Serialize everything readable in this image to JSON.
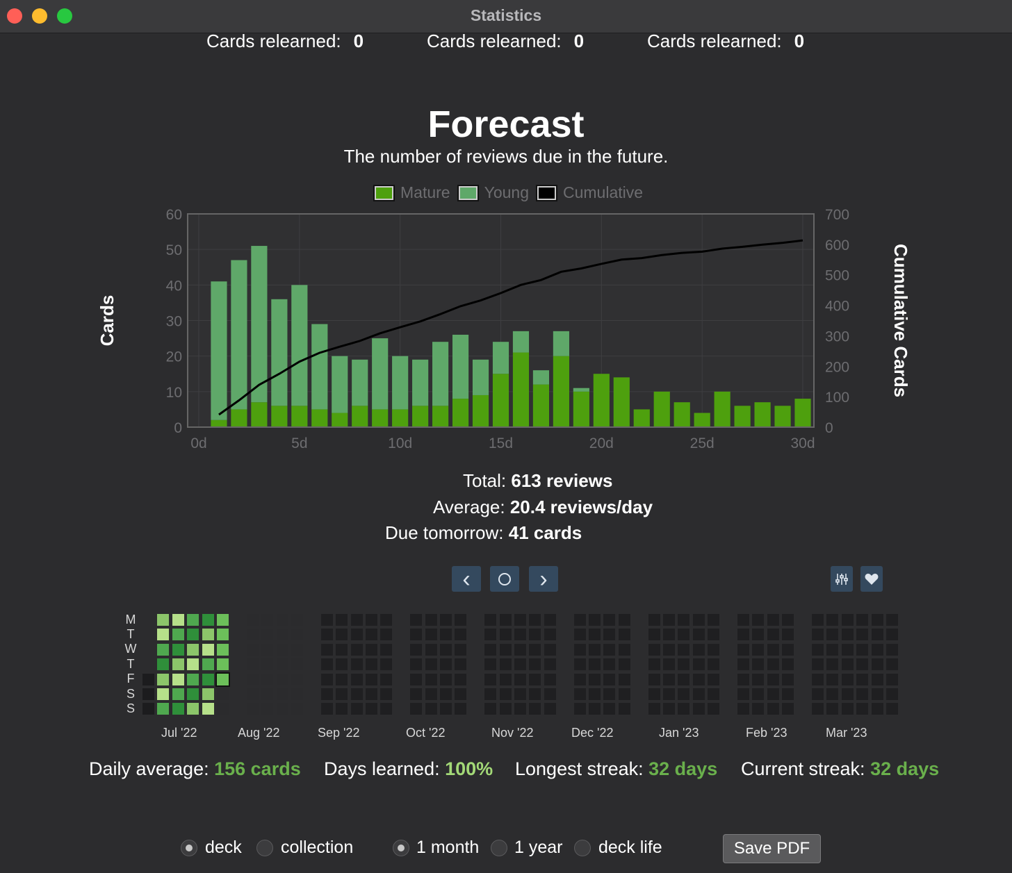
{
  "window": {
    "title": "Statistics"
  },
  "relearned": [
    {
      "label": "Cards relearned:",
      "value": "0"
    },
    {
      "label": "Cards relearned:",
      "value": "0"
    },
    {
      "label": "Cards relearned:",
      "value": "0"
    }
  ],
  "forecast": {
    "title": "Forecast",
    "subtitle": "The number of reviews due in the future.",
    "legend": {
      "mature": "Mature",
      "young": "Young",
      "cumulative": "Cumulative"
    },
    "stats": {
      "total_label": "Total:",
      "total_value": "613 reviews",
      "average_label": "Average:",
      "average_value": "20.4 reviews/day",
      "due_label": "Due tomorrow:",
      "due_value": "41 cards"
    }
  },
  "colors": {
    "mature": "#4ea00e",
    "young": "#5fa869",
    "cumulative": "#000000",
    "background": "#2c2c2e",
    "accent": "#6ab04c"
  },
  "chart_data": {
    "type": "bar",
    "title": "Forecast",
    "ylabel": "Cards",
    "y2label": "Cumulative Cards",
    "xlim": [
      0,
      30
    ],
    "ylim": [
      0,
      60
    ],
    "y2lim": [
      0,
      700
    ],
    "xticks": [
      "0d",
      "5d",
      "10d",
      "15d",
      "20d",
      "25d",
      "30d"
    ],
    "yticks": [
      "0",
      "10",
      "20",
      "30",
      "40",
      "50",
      "60"
    ],
    "y2ticks": [
      "0",
      "100",
      "200",
      "300",
      "400",
      "500",
      "600",
      "700"
    ],
    "legend_position": "top",
    "grid": true,
    "x": [
      1,
      2,
      3,
      4,
      5,
      6,
      7,
      8,
      9,
      10,
      11,
      12,
      13,
      14,
      15,
      16,
      17,
      18,
      19,
      20,
      21,
      22,
      23,
      24,
      25,
      26,
      27,
      28,
      29,
      30
    ],
    "series": [
      {
        "name": "Mature",
        "values": [
          2,
          5,
          7,
          6,
          6,
          5,
          4,
          6,
          5,
          5,
          6,
          6,
          8,
          9,
          15,
          21,
          12,
          20,
          10,
          15,
          14,
          5,
          10,
          7,
          4,
          10,
          6,
          7,
          6,
          8
        ]
      },
      {
        "name": "Young",
        "values": [
          39,
          42,
          44,
          30,
          34,
          24,
          16,
          13,
          20,
          15,
          13,
          18,
          18,
          10,
          9,
          6,
          4,
          7,
          1,
          0,
          0,
          0,
          0,
          0,
          0,
          0,
          0,
          0,
          0,
          0
        ]
      },
      {
        "name": "Cumulative",
        "values": [
          41,
          88,
          139,
          175,
          215,
          244,
          264,
          283,
          308,
          328,
          347,
          371,
          397,
          416,
          440,
          467,
          483,
          510,
          521,
          536,
          550,
          555,
          565,
          572,
          576,
          586,
          592,
          599,
          605,
          613
        ]
      }
    ]
  },
  "nav": {
    "prev": "‹",
    "today": "○",
    "next": "›"
  },
  "heatmap": {
    "days": [
      "M",
      "T",
      "W",
      "T",
      "F",
      "S",
      "S"
    ],
    "months": [
      "Jul '22",
      "Aug '22",
      "Sep '22",
      "Oct '22",
      "Nov '22",
      "Dec '22",
      "Jan '23",
      "Feb '23",
      "Mar '23"
    ],
    "settings_icon": "sliders-icon",
    "heart_icon": "heart-icon"
  },
  "summary": {
    "daily_label": "Daily average:",
    "daily_value": "156 cards",
    "days_label": "Days learned:",
    "days_value": "100%",
    "longest_label": "Longest streak:",
    "longest_value": "32 days",
    "current_label": "Current streak:",
    "current_value": "32 days"
  },
  "controls": {
    "scope": [
      {
        "label": "deck",
        "selected": true
      },
      {
        "label": "collection",
        "selected": false
      }
    ],
    "period": [
      {
        "label": "1 month",
        "selected": true
      },
      {
        "label": "1 year",
        "selected": false
      },
      {
        "label": "deck life",
        "selected": false
      }
    ],
    "save_label": "Save PDF"
  }
}
